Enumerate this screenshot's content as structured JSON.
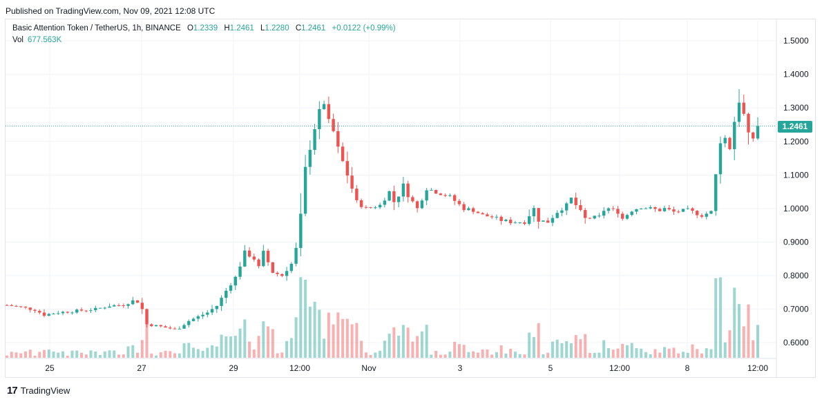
{
  "published": "Published on TradingView.com, Nov 09, 2021 12:08 UTC",
  "legend": {
    "symbol": "Basic Attention Token / TetherUS, 1h, BINANCE",
    "o_label": "O",
    "o_value": "1.2339",
    "h_label": "H",
    "h_value": "1.2461",
    "l_label": "L",
    "l_value": "1.2280",
    "c_label": "C",
    "c_value": "1.2461",
    "change": "+0.0122 (+0.99%)",
    "vol_label": "Vol",
    "vol_value": "677.563K"
  },
  "last_price_tag": "1.2461",
  "footer": {
    "brand": "TradingView",
    "logo": "17"
  },
  "colors": {
    "up": "#26a69a",
    "down": "#ef5350",
    "grid": "#f0f3fa"
  },
  "chart_data": {
    "type": "candlestick",
    "title": "Basic Attention Token / TetherUS, 1h, BINANCE",
    "ylim": [
      0.555,
      1.56
    ],
    "y_ticks": [
      "1.5000",
      "1.4000",
      "1.3000",
      "1.2000",
      "1.1000",
      "1.0000",
      "0.9000",
      "0.8000",
      "0.7000",
      "0.6000"
    ],
    "x_ticks": [
      "25",
      "27",
      "29",
      "12:00",
      "Nov",
      "3",
      "5",
      "12:00",
      "8",
      "12:00"
    ],
    "last_price": 1.2461,
    "grid": true,
    "close_path": [
      [
        0,
        0.712
      ],
      [
        3,
        0.706
      ],
      [
        6,
        0.698
      ],
      [
        8,
        0.683
      ],
      [
        11,
        0.69
      ],
      [
        15,
        0.695
      ],
      [
        19,
        0.7
      ],
      [
        22,
        0.71
      ],
      [
        25,
        0.713
      ],
      [
        27.5,
        0.728
      ],
      [
        28,
        0.722
      ],
      [
        29,
        0.7
      ],
      [
        30,
        0.655
      ],
      [
        33,
        0.648
      ],
      [
        36,
        0.64
      ],
      [
        37,
        0.645
      ],
      [
        39,
        0.665
      ],
      [
        43,
        0.69
      ],
      [
        45,
        0.71
      ],
      [
        47,
        0.755
      ],
      [
        49,
        0.795
      ],
      [
        50,
        0.83
      ],
      [
        51,
        0.87
      ],
      [
        53,
        0.85
      ],
      [
        54,
        0.825
      ],
      [
        55,
        0.87
      ],
      [
        57,
        0.81
      ],
      [
        59,
        0.8
      ],
      [
        61,
        0.835
      ],
      [
        62,
        0.88
      ],
      [
        63,
        0.98
      ],
      [
        64,
        1.12
      ],
      [
        65,
        1.18
      ],
      [
        66,
        1.24
      ],
      [
        67,
        1.29
      ],
      [
        68,
        1.315
      ],
      [
        69,
        1.26
      ],
      [
        70,
        1.23
      ],
      [
        71,
        1.18
      ],
      [
        73,
        1.1
      ],
      [
        75,
        1.02
      ],
      [
        77,
        1.0
      ],
      [
        80,
        1.01
      ],
      [
        82,
        1.05
      ],
      [
        83,
        1.02
      ],
      [
        84,
        1.04
      ],
      [
        85,
        1.07
      ],
      [
        86,
        1.04
      ],
      [
        88,
        1.0
      ],
      [
        90,
        1.06
      ],
      [
        92,
        1.05
      ],
      [
        95,
        1.035
      ],
      [
        98,
        1.0
      ],
      [
        100,
        0.995
      ],
      [
        102,
        0.98
      ],
      [
        104,
        0.975
      ],
      [
        106,
        0.965
      ],
      [
        108,
        0.96
      ],
      [
        111,
        0.96
      ],
      [
        113,
        1.0
      ],
      [
        114,
        0.965
      ],
      [
        116,
        0.96
      ],
      [
        118,
        0.99
      ],
      [
        120,
        1.01
      ],
      [
        121,
        1.03
      ],
      [
        122,
        1.01
      ],
      [
        124,
        0.97
      ],
      [
        127,
        0.975
      ],
      [
        128,
        0.995
      ],
      [
        129,
        1.0
      ],
      [
        131,
        0.99
      ],
      [
        132,
        0.97
      ],
      [
        134,
        0.995
      ],
      [
        136,
        1.005
      ],
      [
        138,
        1.0
      ],
      [
        140,
        0.995
      ],
      [
        141,
        1.0
      ],
      [
        143,
        0.99
      ],
      [
        146,
        0.995
      ],
      [
        149,
        0.98
      ],
      [
        151,
        0.99
      ],
      [
        152,
        1.1
      ],
      [
        153,
        1.2
      ],
      [
        154,
        1.21
      ],
      [
        155,
        1.18
      ],
      [
        156,
        1.26
      ],
      [
        157,
        1.32
      ],
      [
        158,
        1.28
      ],
      [
        159,
        1.22
      ],
      [
        160,
        1.21
      ],
      [
        161,
        1.246
      ]
    ],
    "volume_spikes_at_12h": [
      0.804,
      0.734,
      0.665
    ]
  }
}
